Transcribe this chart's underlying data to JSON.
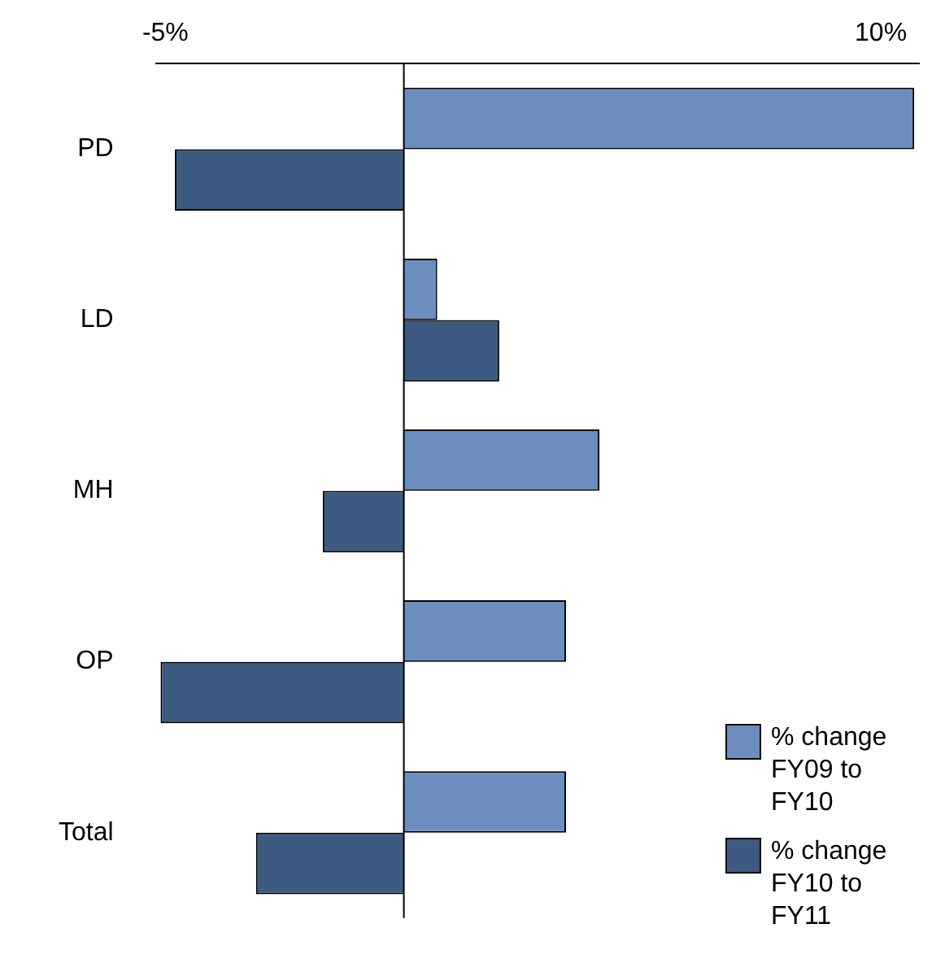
{
  "chart_data": {
    "type": "bar",
    "orientation": "horizontal",
    "categories": [
      "PD",
      "LD",
      "MH",
      "OP",
      "Total"
    ],
    "series": [
      {
        "name": "% change FY09 to FY10",
        "color": "#6c8ebf",
        "values": [
          10.7,
          0.7,
          4.1,
          3.4,
          3.4
        ]
      },
      {
        "name": "% change FY10 to FY11",
        "color": "#3d5a80",
        "values": [
          -4.8,
          2.0,
          -1.7,
          -5.1,
          -3.1
        ]
      }
    ],
    "xlim": [
      -5.2,
      10.8
    ],
    "xticks": [
      {
        "value": -5,
        "label": "-5%"
      },
      {
        "value": 10,
        "label": "10%"
      }
    ],
    "grid": false,
    "legend": "bottom right"
  }
}
